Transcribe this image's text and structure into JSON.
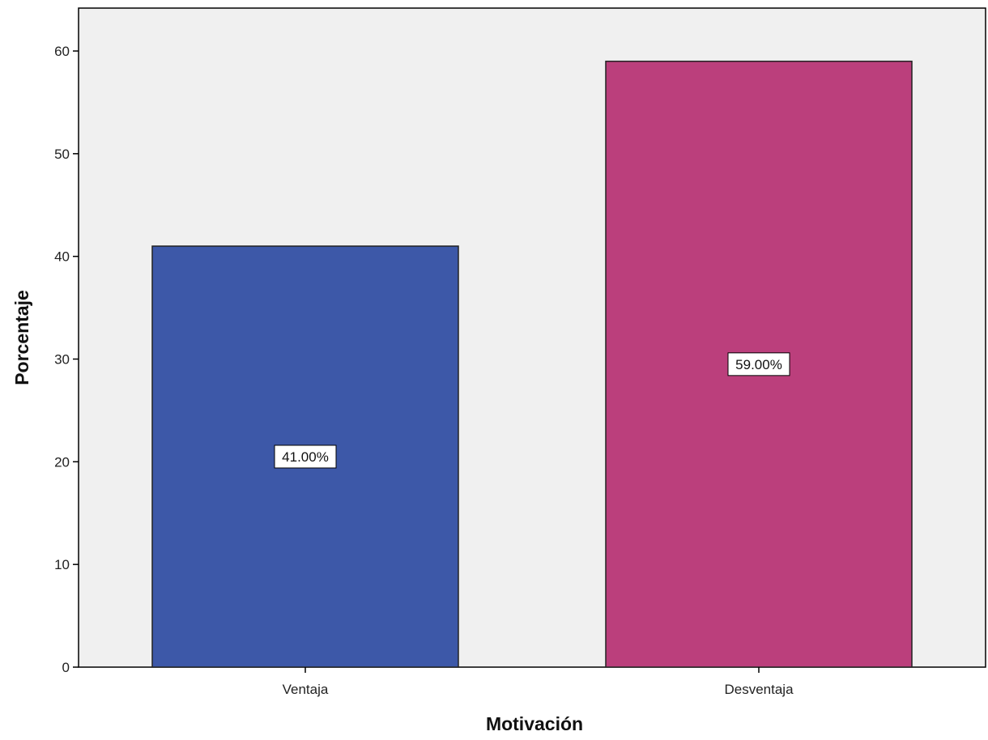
{
  "chart_data": {
    "type": "bar",
    "categories": [
      "Ventaja",
      "Desventaja"
    ],
    "values": [
      41.0,
      59.0
    ],
    "data_labels": [
      "41.00%",
      "59.00%"
    ],
    "colors": [
      "#3d58a8",
      "#bb3f7c"
    ],
    "xlabel": "Motivación",
    "ylabel": "Porcentaje",
    "ylim": [
      0,
      60
    ],
    "yticks": [
      0,
      10,
      20,
      30,
      40,
      50,
      60
    ],
    "plot_background": "#f0f0f0",
    "grid": false
  }
}
